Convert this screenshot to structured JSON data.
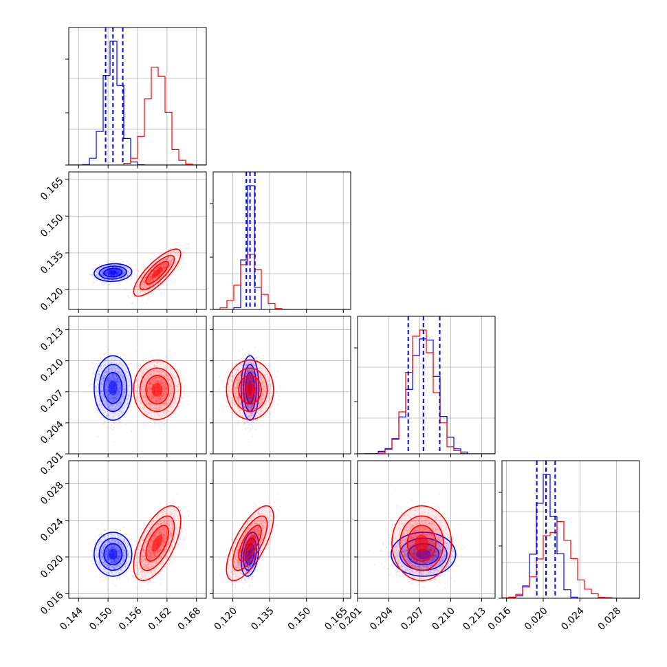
{
  "chart_data": {
    "type": "scatter",
    "layout": "corner",
    "colors": {
      "blue": "#0000ff",
      "red": "#ff0000",
      "grid": "#b0b0b0",
      "frame": "#000000"
    },
    "grid": true,
    "dimensions": [
      {
        "range": [
          0.142,
          0.17
        ],
        "ticks": [
          "0.144",
          "0.150",
          "0.156",
          "0.162",
          "0.168"
        ]
      },
      {
        "range": [
          0.112,
          0.168
        ],
        "ticks": [
          "0.120",
          "0.135",
          "0.150",
          "0.165"
        ]
      },
      {
        "range": [
          0.201,
          0.2143
        ],
        "ticks": [
          "0.201",
          "0.204",
          "0.207",
          "0.210",
          "0.213"
        ]
      },
      {
        "range": [
          0.0155,
          0.0305
        ],
        "ticks": [
          "0.016",
          "0.020",
          "0.024",
          "0.028"
        ]
      }
    ],
    "series": [
      {
        "color": "#0000ff",
        "mean": [
          0.151,
          0.127,
          0.20737,
          0.0203
        ],
        "sd": [
          0.0016,
          0.0015,
          0.0013,
          0.001
        ],
        "corr": [
          [
            1,
            0.1,
            0.0,
            0.0
          ],
          [
            0.1,
            1,
            0.0,
            0.3
          ],
          [
            0.0,
            0.0,
            1,
            0.0
          ],
          [
            0.0,
            0.3,
            0.0,
            1
          ]
        ],
        "quantiles": [
          [
            0.1495,
            0.151,
            0.153
          ],
          [
            0.1255,
            0.127,
            0.129
          ],
          [
            0.2059,
            0.20737,
            0.20895
          ],
          [
            0.0193,
            0.0203,
            0.0213
          ]
        ]
      },
      {
        "color": "#ff0000",
        "mean": [
          0.16,
          0.127,
          0.2072,
          0.0215
        ],
        "sd": [
          0.002,
          0.004,
          0.0012,
          0.0017
        ],
        "corr": [
          [
            1,
            0.8,
            0.0,
            0.6
          ],
          [
            0.8,
            1,
            0.0,
            0.7
          ],
          [
            0.0,
            0.0,
            1,
            0.0
          ],
          [
            0.6,
            0.7,
            0.0,
            1
          ]
        ]
      }
    ]
  }
}
